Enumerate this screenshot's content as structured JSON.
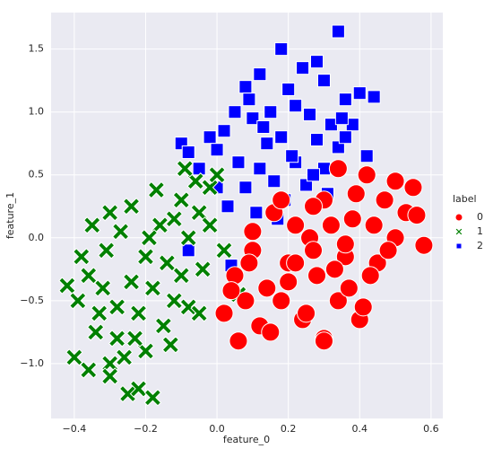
{
  "chart_data": {
    "type": "scatter",
    "x_label": "feature_0",
    "y_label": "feature_1",
    "legend_title": "label",
    "legend_position": "right",
    "grid": true,
    "xlim": [
      -0.465,
      0.633
    ],
    "ylim": [
      -1.436,
      1.79
    ],
    "xticks": [
      {
        "value": -0.4,
        "label": "−0.4"
      },
      {
        "value": -0.2,
        "label": "−0.2"
      },
      {
        "value": 0,
        "label": "0.0"
      },
      0.2,
      0.4,
      0.6
    ],
    "yticks": [
      {
        "value": -1,
        "label": "−1.0"
      },
      {
        "value": -0.5,
        "label": "−0.5"
      },
      {
        "value": 0,
        "label": "0.0"
      },
      0.5,
      {
        "value": 1,
        "label": "1.0"
      },
      1.5
    ],
    "series": [
      {
        "name": "0",
        "color": "#ff0000",
        "marker": "circle",
        "x": [
          0.34,
          0.42,
          0.5,
          0.55,
          0.58,
          0.47,
          0.39,
          0.3,
          0.22,
          0.16,
          0.1,
          0.05,
          0.02,
          0.08,
          0.14,
          0.2,
          0.26,
          0.32,
          0.38,
          0.44,
          0.5,
          0.53,
          0.45,
          0.36,
          0.28,
          0.18,
          0.12,
          0.06,
          0.24,
          0.3,
          0.4,
          0.34,
          0.27,
          0.2,
          0.15,
          0.1,
          0.22,
          0.37,
          0.43,
          0.48,
          0.3,
          0.25,
          0.33,
          0.18,
          0.41,
          0.09,
          0.27,
          0.36,
          0.04,
          0.56
        ],
        "values": [
          0.55,
          0.5,
          0.45,
          0.4,
          -0.06,
          0.3,
          0.35,
          0.3,
          0.1,
          0.2,
          -0.1,
          -0.3,
          -0.6,
          -0.5,
          -0.4,
          -0.2,
          0.0,
          0.1,
          0.15,
          0.1,
          0.0,
          0.2,
          -0.2,
          -0.15,
          -0.3,
          -0.5,
          -0.7,
          -0.82,
          -0.65,
          -0.8,
          -0.65,
          -0.5,
          -0.1,
          -0.35,
          -0.75,
          0.05,
          -0.2,
          -0.4,
          -0.3,
          -0.1,
          -0.82,
          -0.6,
          -0.25,
          0.3,
          -0.55,
          -0.2,
          0.25,
          -0.05,
          -0.42,
          0.18
        ]
      },
      {
        "name": "1",
        "color": "#008000",
        "marker": "x",
        "x": [
          -0.42,
          -0.4,
          -0.38,
          -0.35,
          -0.3,
          -0.33,
          -0.28,
          -0.25,
          -0.22,
          -0.18,
          -0.2,
          -0.15,
          -0.12,
          -0.1,
          -0.08,
          -0.05,
          -0.02,
          0.0,
          -0.24,
          -0.27,
          -0.31,
          -0.36,
          -0.39,
          -0.34,
          -0.3,
          -0.26,
          -0.22,
          -0.18,
          -0.14,
          -0.1,
          -0.06,
          -0.02,
          0.02,
          0.06,
          -0.16,
          -0.2,
          -0.24,
          -0.28,
          -0.32,
          -0.12,
          -0.08,
          -0.04,
          -0.3,
          -0.36,
          -0.23,
          -0.19,
          -0.13,
          -0.09,
          -0.17,
          -0.05
        ],
        "values": [
          -0.38,
          -0.95,
          -0.15,
          0.1,
          0.2,
          -0.6,
          -0.8,
          -1.24,
          -1.2,
          -1.27,
          -0.9,
          -0.7,
          -0.5,
          -0.3,
          0.0,
          0.2,
          0.4,
          0.5,
          0.25,
          0.05,
          -0.1,
          -0.3,
          -0.5,
          -0.75,
          -1.0,
          -0.95,
          -0.6,
          -0.4,
          -0.2,
          0.3,
          0.45,
          0.1,
          -0.1,
          -0.45,
          0.1,
          -0.15,
          -0.35,
          -0.55,
          -0.4,
          0.15,
          -0.55,
          -0.25,
          -1.1,
          -1.05,
          -0.8,
          0.0,
          -0.85,
          0.55,
          0.38,
          -0.6
        ]
      },
      {
        "name": "2",
        "color": "#0000ff",
        "marker": "square",
        "x": [
          0.34,
          0.18,
          0.28,
          0.12,
          0.24,
          0.3,
          0.08,
          0.2,
          0.36,
          0.4,
          0.44,
          0.15,
          0.22,
          0.05,
          0.1,
          0.26,
          0.32,
          0.38,
          0.02,
          -0.02,
          -0.1,
          0.0,
          0.14,
          0.18,
          0.28,
          0.34,
          0.42,
          0.06,
          0.12,
          0.22,
          0.3,
          0.16,
          0.08,
          0.25,
          -0.05,
          0.19,
          0.11,
          0.03,
          0.31,
          0.27,
          0.21,
          0.13,
          0.36,
          0.09,
          -0.08,
          0.0,
          -0.08,
          0.35,
          0.04,
          0.17
        ],
        "values": [
          1.64,
          1.5,
          1.4,
          1.3,
          1.35,
          1.25,
          1.2,
          1.18,
          1.1,
          1.15,
          1.12,
          1.0,
          1.05,
          1.0,
          0.95,
          0.98,
          0.9,
          0.9,
          0.85,
          0.8,
          0.75,
          0.7,
          0.75,
          0.8,
          0.78,
          0.72,
          0.65,
          0.6,
          0.55,
          0.6,
          0.55,
          0.45,
          0.4,
          0.42,
          0.55,
          0.3,
          0.2,
          0.25,
          0.35,
          0.5,
          0.65,
          0.88,
          0.8,
          1.1,
          0.68,
          0.4,
          -0.1,
          0.95,
          -0.22,
          0.15
        ]
      }
    ]
  }
}
